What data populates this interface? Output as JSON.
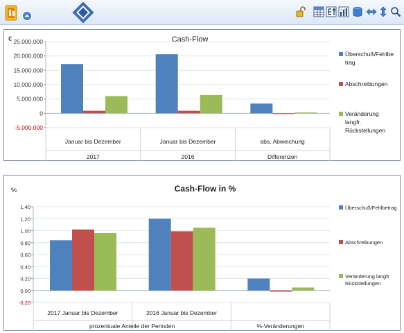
{
  "toolbar": {
    "buttons": [
      "app-logo-icon",
      "circle-up-icon",
      "diamond-nav-icon",
      "unlock-icon",
      "table-icon",
      "export-icon",
      "chart-bar-icon",
      "database-icon",
      "arrows-left-right-icon",
      "arrows-up-down-icon",
      "search-icon"
    ]
  },
  "colors": {
    "series1": "#4f81bd",
    "series2": "#c0504d",
    "series3": "#9bbb59",
    "grid": "#dde8e8",
    "axis_text": "#333333",
    "negative_text": "#c00000"
  },
  "chart_data": [
    {
      "type": "bar",
      "title": "Cash-Flow",
      "ylabel": "€",
      "ylim": [
        -5000000,
        25000000
      ],
      "yticks": [
        -5000000,
        0,
        5000000,
        10000000,
        15000000,
        20000000,
        25000000
      ],
      "ytick_labels": [
        "-5.000.000",
        "0",
        "5.000.000",
        "10.000.000",
        "15.000.000",
        "20.000.000",
        "25.000.000"
      ],
      "categories": [
        "Januar bis Dezember",
        "Januar bis Dezember",
        "abs. Abweichung"
      ],
      "groups": [
        "2017",
        "2016",
        "Differenzen"
      ],
      "series": [
        {
          "name": "Überschuß/Fehlbetrag",
          "values": [
            17200000,
            20600000,
            3400000
          ]
        },
        {
          "name": "Abschreibungen",
          "values": [
            900000,
            900000,
            0
          ]
        },
        {
          "name": "Veränderung langfr. Rückstellungen",
          "values": [
            6000000,
            6400000,
            300000
          ]
        }
      ],
      "legend_lines": [
        [
          "Überschuß/Fehlbe",
          "trag"
        ],
        [
          "Abschreibungen"
        ],
        [
          "Veränderung",
          "langfr.",
          "Rückstellungen"
        ]
      ],
      "grid": true,
      "legend": "right"
    },
    {
      "type": "bar",
      "title": "Cash-Flow in %",
      "ylabel": "%",
      "ylim": [
        -0.2,
        1.4
      ],
      "yticks": [
        -0.2,
        0,
        0.2,
        0.4,
        0.6,
        0.8,
        1.0,
        1.2,
        1.4
      ],
      "ytick_labels": [
        "-0,20",
        "0,00",
        "0,20",
        "0,40",
        "0,60",
        "0,80",
        "1,00",
        "1,20",
        "1,40"
      ],
      "categories": [
        "2017 Januar bis Dezember",
        "2016 Januar bis Dezember",
        ""
      ],
      "groups": [
        "prozentuale Anteile der Perioden",
        "%-Veränderungen"
      ],
      "series": [
        {
          "name": "Überschuß/Fehlbetrag",
          "values": [
            0.84,
            1.2,
            0.2
          ]
        },
        {
          "name": "Abschreibungen",
          "values": [
            1.02,
            0.99,
            -0.02
          ]
        },
        {
          "name": "Veränderung langfr. Rückstellungen",
          "values": [
            0.96,
            1.05,
            0.05
          ]
        }
      ],
      "legend_lines": [
        [
          "Überschuß/Fehlbetrag"
        ],
        [
          "Abschreibungen"
        ],
        [
          "Veränderung langfr.",
          "Rückstellungen"
        ]
      ],
      "grid": true,
      "legend": "right"
    }
  ]
}
